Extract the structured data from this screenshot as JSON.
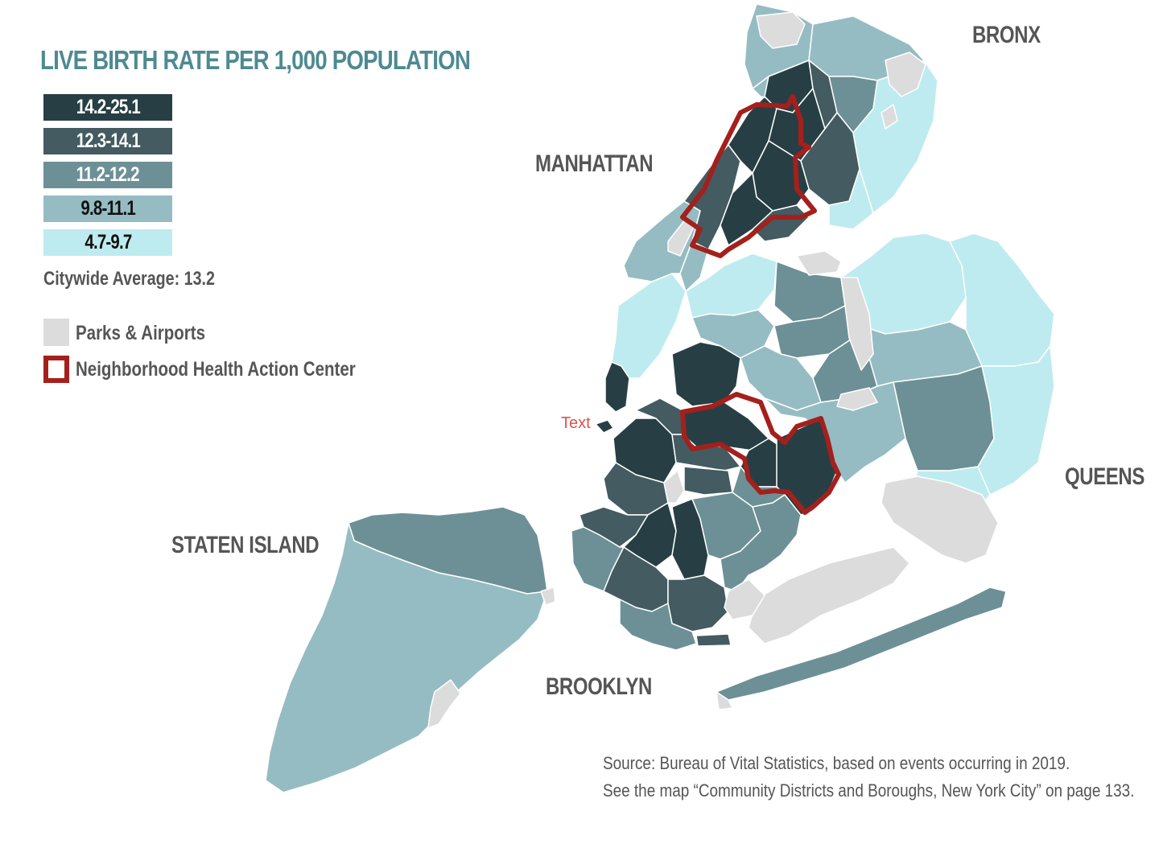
{
  "title": "LIVE BIRTH RATE PER 1,000 POPULATION",
  "legend": {
    "classes": [
      {
        "label": "14.2-25.1",
        "color": "#273f44",
        "text_color": "#ffffff"
      },
      {
        "label": "12.3-14.1",
        "color": "#435b61",
        "text_color": "#ffffff"
      },
      {
        "label": "11.2-12.2",
        "color": "#6c9096",
        "text_color": "#ffffff"
      },
      {
        "label": "9.8-11.1",
        "color": "#95bcc2",
        "text_color": "#111111"
      },
      {
        "label": "4.7-9.7",
        "color": "#beebf0",
        "text_color": "#111111"
      }
    ],
    "citywide_average": "Citywide Average: 13.2",
    "parks_label": "Parks & Airports",
    "parks_color": "#dcdcdc",
    "nhac_label": "Neighborhood Health Action Center",
    "nhac_color": "#a4201c"
  },
  "boroughs": {
    "bronx": "BRONX",
    "manhattan": "MANHATTAN",
    "queens": "QUEENS",
    "staten_island": "STATEN ISLAND",
    "brooklyn": "BROOKLYN"
  },
  "stray_text": "Text",
  "source": {
    "line1": "Source: Bureau of Vital Statistics, based on events occurring in 2019.",
    "line2": "See the map “Community Districts and Boroughs, New York City” on page 133."
  }
}
